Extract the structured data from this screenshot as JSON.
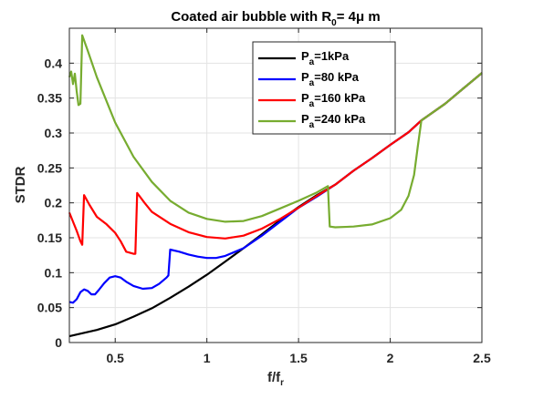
{
  "chart_data": {
    "type": "line",
    "title": {
      "main": "Coated air bubble with R",
      "sub": "0",
      "rest": "= 4μ m"
    },
    "xlabel": {
      "main": "f/f",
      "sub": "r"
    },
    "ylabel": "STDR",
    "xlim": [
      0.25,
      2.5
    ],
    "ylim": [
      0,
      0.45
    ],
    "xticks": [
      0.5,
      1,
      1.5,
      2,
      2.5
    ],
    "xtick_labels": [
      "0.5",
      "1",
      "1.5",
      "2",
      "2.5"
    ],
    "yticks": [
      0,
      0.05,
      0.1,
      0.15,
      0.2,
      0.25,
      0.3,
      0.35,
      0.4
    ],
    "ytick_labels": [
      "0",
      "0.05",
      "0.1",
      "0.15",
      "0.2",
      "0.25",
      "0.3",
      "0.35",
      "0.4"
    ],
    "grid": true,
    "legend_position": "top-right",
    "series": [
      {
        "legend": {
          "main": "P",
          "sub": "a",
          "rest": "=1kPa"
        },
        "color": "#000000",
        "points": [
          [
            0.25,
            0.009
          ],
          [
            0.4,
            0.018
          ],
          [
            0.5,
            0.026
          ],
          [
            0.6,
            0.037
          ],
          [
            0.7,
            0.049
          ],
          [
            0.8,
            0.064
          ],
          [
            0.9,
            0.08
          ],
          [
            1.0,
            0.097
          ],
          [
            1.1,
            0.116
          ],
          [
            1.2,
            0.135
          ],
          [
            1.3,
            0.155
          ],
          [
            1.4,
            0.175
          ],
          [
            1.5,
            0.194
          ],
          [
            1.6,
            0.211
          ],
          [
            1.7,
            0.226
          ],
          [
            1.8,
            0.246
          ],
          [
            1.9,
            0.264
          ],
          [
            2.0,
            0.283
          ],
          [
            2.1,
            0.301
          ],
          [
            2.17,
            0.318
          ],
          [
            2.3,
            0.342
          ],
          [
            2.4,
            0.364
          ],
          [
            2.5,
            0.386
          ]
        ]
      },
      {
        "legend": {
          "main": "P",
          "sub": "a",
          "rest": "=80 kPa"
        },
        "color": "#0000ff",
        "points": [
          [
            0.25,
            0.058
          ],
          [
            0.27,
            0.057
          ],
          [
            0.29,
            0.062
          ],
          [
            0.31,
            0.072
          ],
          [
            0.33,
            0.076
          ],
          [
            0.35,
            0.074
          ],
          [
            0.37,
            0.069
          ],
          [
            0.39,
            0.069
          ],
          [
            0.41,
            0.075
          ],
          [
            0.44,
            0.085
          ],
          [
            0.47,
            0.093
          ],
          [
            0.5,
            0.095
          ],
          [
            0.53,
            0.093
          ],
          [
            0.56,
            0.087
          ],
          [
            0.6,
            0.081
          ],
          [
            0.65,
            0.077
          ],
          [
            0.7,
            0.078
          ],
          [
            0.74,
            0.084
          ],
          [
            0.78,
            0.093
          ],
          [
            0.79,
            0.096
          ],
          [
            0.8,
            0.133
          ],
          [
            0.85,
            0.13
          ],
          [
            0.9,
            0.126
          ],
          [
            0.95,
            0.123
          ],
          [
            1.0,
            0.121
          ],
          [
            1.05,
            0.121
          ],
          [
            1.1,
            0.124
          ],
          [
            1.2,
            0.135
          ],
          [
            1.3,
            0.153
          ],
          [
            1.4,
            0.173
          ],
          [
            1.5,
            0.193
          ],
          [
            1.6,
            0.209
          ],
          [
            1.7,
            0.226
          ],
          [
            1.8,
            0.246
          ],
          [
            1.9,
            0.264
          ],
          [
            2.0,
            0.283
          ],
          [
            2.1,
            0.301
          ],
          [
            2.17,
            0.318
          ],
          [
            2.3,
            0.342
          ],
          [
            2.4,
            0.364
          ],
          [
            2.5,
            0.386
          ]
        ]
      },
      {
        "legend": {
          "main": "P",
          "sub": "a",
          "rest": "=160 kPa"
        },
        "color": "#ff0000",
        "points": [
          [
            0.25,
            0.186
          ],
          [
            0.27,
            0.173
          ],
          [
            0.29,
            0.16
          ],
          [
            0.31,
            0.145
          ],
          [
            0.32,
            0.14
          ],
          [
            0.33,
            0.211
          ],
          [
            0.36,
            0.197
          ],
          [
            0.4,
            0.18
          ],
          [
            0.45,
            0.17
          ],
          [
            0.5,
            0.157
          ],
          [
            0.53,
            0.145
          ],
          [
            0.56,
            0.13
          ],
          [
            0.6,
            0.127
          ],
          [
            0.61,
            0.127
          ],
          [
            0.62,
            0.214
          ],
          [
            0.66,
            0.2
          ],
          [
            0.7,
            0.187
          ],
          [
            0.8,
            0.17
          ],
          [
            0.9,
            0.158
          ],
          [
            1.0,
            0.151
          ],
          [
            1.1,
            0.149
          ],
          [
            1.2,
            0.153
          ],
          [
            1.3,
            0.163
          ],
          [
            1.4,
            0.177
          ],
          [
            1.5,
            0.193
          ],
          [
            1.6,
            0.21
          ],
          [
            1.7,
            0.226
          ],
          [
            1.8,
            0.246
          ],
          [
            1.9,
            0.264
          ],
          [
            2.0,
            0.283
          ],
          [
            2.1,
            0.301
          ],
          [
            2.17,
            0.318
          ],
          [
            2.3,
            0.342
          ],
          [
            2.4,
            0.364
          ],
          [
            2.5,
            0.386
          ]
        ]
      },
      {
        "legend": {
          "main": "P",
          "sub": "a",
          "rest": "=240 kPa"
        },
        "color": "#77ac30",
        "points": [
          [
            0.25,
            0.38
          ],
          [
            0.26,
            0.388
          ],
          [
            0.27,
            0.37
          ],
          [
            0.28,
            0.385
          ],
          [
            0.29,
            0.36
          ],
          [
            0.3,
            0.34
          ],
          [
            0.31,
            0.342
          ],
          [
            0.32,
            0.44
          ],
          [
            0.35,
            0.418
          ],
          [
            0.4,
            0.38
          ],
          [
            0.5,
            0.315
          ],
          [
            0.6,
            0.266
          ],
          [
            0.7,
            0.23
          ],
          [
            0.8,
            0.203
          ],
          [
            0.9,
            0.186
          ],
          [
            1.0,
            0.177
          ],
          [
            1.1,
            0.173
          ],
          [
            1.2,
            0.174
          ],
          [
            1.3,
            0.181
          ],
          [
            1.4,
            0.192
          ],
          [
            1.5,
            0.203
          ],
          [
            1.6,
            0.215
          ],
          [
            1.66,
            0.224
          ],
          [
            1.67,
            0.166
          ],
          [
            1.7,
            0.165
          ],
          [
            1.8,
            0.166
          ],
          [
            1.9,
            0.169
          ],
          [
            2.0,
            0.178
          ],
          [
            2.06,
            0.19
          ],
          [
            2.1,
            0.21
          ],
          [
            2.13,
            0.24
          ],
          [
            2.15,
            0.28
          ],
          [
            2.17,
            0.318
          ],
          [
            2.3,
            0.342
          ],
          [
            2.4,
            0.364
          ],
          [
            2.5,
            0.386
          ]
        ]
      }
    ]
  }
}
